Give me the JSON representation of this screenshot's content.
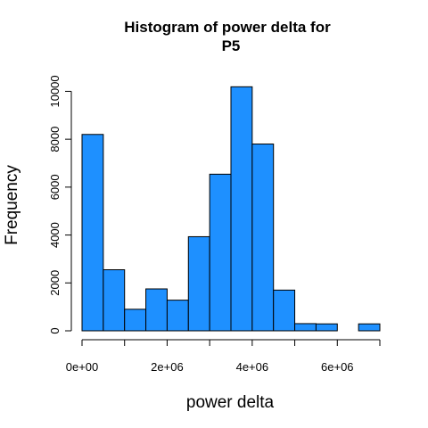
{
  "chart_data": {
    "type": "histogram",
    "title_lines": [
      "Histogram of power delta for",
      "P5"
    ],
    "xlabel": "power delta",
    "ylabel": "Frequency",
    "bar_color": "#1E90FF",
    "bin_width": 500000,
    "bin_starts": [
      0,
      500000,
      1000000,
      1500000,
      2000000,
      2500000,
      3000000,
      3500000,
      4000000,
      4500000,
      5000000,
      5500000,
      6000000,
      6500000
    ],
    "counts": [
      8200,
      2550,
      900,
      1750,
      1280,
      3930,
      6540,
      10190,
      7800,
      1700,
      300,
      290,
      0,
      290
    ],
    "xlim": [
      0,
      7000000
    ],
    "ylim": [
      0,
      10500
    ],
    "x_ticks": [
      0,
      1000000,
      2000000,
      3000000,
      4000000,
      5000000,
      6000000,
      7000000
    ],
    "x_tick_labels": [
      "0e+00",
      "",
      "2e+06",
      "",
      "4e+06",
      "",
      "6e+06",
      ""
    ],
    "y_ticks": [
      0,
      2000,
      4000,
      6000,
      8000,
      10000
    ],
    "y_tick_labels": [
      "0",
      "2000",
      "4000",
      "6000",
      "8000",
      "10000"
    ]
  }
}
